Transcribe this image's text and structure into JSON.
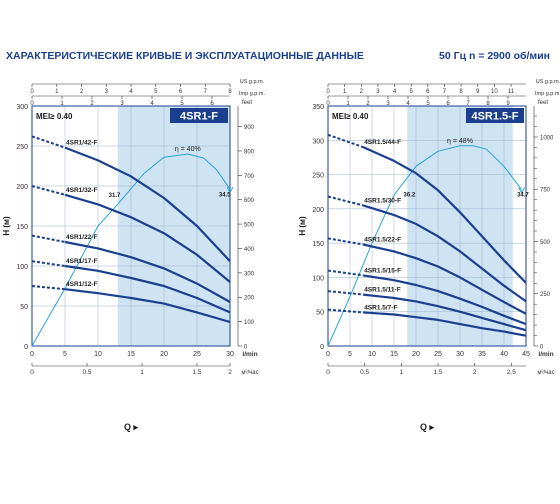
{
  "page": {
    "title": "ХАРАКТЕРИСТИЧЕСКИЕ КРИВЫЕ И ЭКСПЛУАТАЦИОННЫЕ ДАННЫЕ",
    "frequency": "50 Гц   n = 2900 об/мин"
  },
  "colors": {
    "curve": "#1b3f8f",
    "efficiency": "#2aa3d8",
    "band": "#cfe4f3",
    "label_box": "#1b3f8f"
  },
  "chart_data": [
    {
      "type": "line",
      "title": "4SR1-F",
      "mei": "MEI≥ 0.40",
      "ylabel": "H (м)",
      "right_unit": "feet",
      "xlabel": "Q",
      "q_max": 30,
      "ylim": [
        0,
        300
      ],
      "yticks": [
        0,
        50,
        100,
        150,
        200,
        250,
        300
      ],
      "feet_ticks": [
        0,
        100,
        200,
        300,
        400,
        500,
        600,
        700,
        800,
        900
      ],
      "top_axes": [
        {
          "unit": "US g.p.m.",
          "max": 8,
          "ticks": [
            0,
            1,
            2,
            3,
            4,
            5,
            6,
            7,
            8
          ]
        },
        {
          "unit": "Imp g.p.m.",
          "max": 6.6,
          "ticks": [
            0,
            1,
            2,
            3,
            4,
            5,
            6
          ]
        }
      ],
      "bottom_axes": [
        {
          "unit": "l/min",
          "max": 30,
          "ticks": [
            0,
            5,
            10,
            15,
            20,
            25,
            30
          ]
        },
        {
          "unit": "м³/час",
          "max": 1.8,
          "ticks": [
            "0",
            "0.5",
            "1",
            "1.5",
            "2"
          ],
          "tick_values": [
            0,
            0.5,
            1,
            1.5,
            2
          ]
        }
      ],
      "band": [
        13,
        30
      ],
      "series": [
        {
          "name": "4SR1/42-F",
          "shutoff": 262,
          "q_start": 5,
          "points": [
            [
              5,
              248
            ],
            [
              10,
              232
            ],
            [
              15,
              212
            ],
            [
              20,
              185
            ],
            [
              25,
              150
            ],
            [
              30,
              106
            ]
          ]
        },
        {
          "name": "4SR1/32-F",
          "shutoff": 200,
          "q_start": 5,
          "points": [
            [
              5,
              189
            ],
            [
              10,
              177
            ],
            [
              15,
              161
            ],
            [
              20,
              141
            ],
            [
              25,
              114
            ],
            [
              30,
              80
            ]
          ]
        },
        {
          "name": "4SR1/22-F",
          "shutoff": 138,
          "q_start": 5,
          "points": [
            [
              5,
              130
            ],
            [
              10,
              122
            ],
            [
              15,
              111
            ],
            [
              20,
              97
            ],
            [
              25,
              78
            ],
            [
              30,
              55
            ]
          ]
        },
        {
          "name": "4SR1/17-F",
          "shutoff": 106,
          "q_start": 5,
          "points": [
            [
              5,
              100
            ],
            [
              10,
              94
            ],
            [
              15,
              85
            ],
            [
              20,
              75
            ],
            [
              25,
              60
            ],
            [
              30,
              42
            ]
          ]
        },
        {
          "name": "4SR1/12-F",
          "shutoff": 75,
          "q_start": 5,
          "points": [
            [
              5,
              71
            ],
            [
              10,
              66
            ],
            [
              15,
              60
            ],
            [
              20,
              53
            ],
            [
              25,
              42
            ],
            [
              30,
              30
            ]
          ]
        }
      ],
      "efficiency": {
        "peak_label": "η = 40%",
        "points": [
          [
            0,
            0
          ],
          [
            5,
            72
          ],
          [
            10,
            150
          ],
          [
            13.5,
            182
          ],
          [
            17,
            216
          ],
          [
            20,
            236
          ],
          [
            23.6,
            240
          ],
          [
            26,
            235
          ],
          [
            28,
            220
          ],
          [
            30,
            196
          ]
        ],
        "annotations": [
          {
            "text": "31.7",
            "q": 12.5,
            "h": 186
          },
          {
            "text": "34.5",
            "q": 29.2,
            "h": 187
          }
        ]
      }
    },
    {
      "type": "line",
      "title": "4SR1.5-F",
      "mei": "MEI≥ 0.40",
      "ylabel": "H (м)",
      "right_unit": "feet",
      "xlabel": "Q",
      "q_max": 45,
      "ylim": [
        0,
        350
      ],
      "yticks": [
        0,
        50,
        100,
        150,
        200,
        250,
        300,
        350
      ],
      "feet_ticks": [
        0,
        250,
        500,
        750,
        1000
      ],
      "feet_minor": [
        50,
        100,
        150,
        200,
        300,
        350,
        400,
        450,
        550,
        600,
        650,
        700,
        800,
        850,
        900,
        950,
        1050,
        1100
      ],
      "top_axes": [
        {
          "unit": "US g.p.m.",
          "max": 11.9,
          "ticks": [
            0,
            1,
            2,
            3,
            4,
            5,
            6,
            7,
            8,
            9,
            10,
            11
          ]
        },
        {
          "unit": "Imp g.p.m.",
          "max": 9.9,
          "ticks": [
            0,
            1,
            2,
            3,
            4,
            5,
            6,
            7,
            8,
            9
          ]
        }
      ],
      "bottom_axes": [
        {
          "unit": "l/min",
          "max": 45,
          "ticks": [
            0,
            5,
            10,
            15,
            20,
            25,
            30,
            35,
            40,
            45
          ]
        },
        {
          "unit": "м³/час",
          "max": 2.7,
          "ticks": [
            "0",
            "0.5",
            "1",
            "1.5",
            "2",
            "2.5"
          ],
          "tick_values": [
            0,
            0.5,
            1,
            1.5,
            2,
            2.5
          ]
        }
      ],
      "band": [
        18,
        42
      ],
      "series": [
        {
          "name": "4SR1.5/44-F",
          "shutoff": 308,
          "q_start": 8,
          "points": [
            [
              8,
              290
            ],
            [
              15,
              270
            ],
            [
              20,
              252
            ],
            [
              25,
              227
            ],
            [
              30,
              195
            ],
            [
              35,
              160
            ],
            [
              40,
              125
            ],
            [
              45,
              92
            ]
          ]
        },
        {
          "name": "4SR1.5/30-F",
          "shutoff": 218,
          "q_start": 8,
          "points": [
            [
              8,
              205
            ],
            [
              15,
              191
            ],
            [
              20,
              178
            ],
            [
              25,
              160
            ],
            [
              30,
              138
            ],
            [
              35,
              113
            ],
            [
              40,
              88
            ],
            [
              45,
              65
            ]
          ]
        },
        {
          "name": "4SR1.5/22-F",
          "shutoff": 157,
          "q_start": 8,
          "points": [
            [
              8,
              148
            ],
            [
              15,
              138
            ],
            [
              20,
              128
            ],
            [
              25,
              116
            ],
            [
              30,
              100
            ],
            [
              35,
              82
            ],
            [
              40,
              64
            ],
            [
              45,
              47
            ]
          ]
        },
        {
          "name": "4SR1.5/15-F",
          "shutoff": 110,
          "q_start": 8,
          "points": [
            [
              8,
              103
            ],
            [
              15,
              96
            ],
            [
              20,
              89
            ],
            [
              25,
              80
            ],
            [
              30,
              69
            ],
            [
              35,
              57
            ],
            [
              40,
              44
            ],
            [
              45,
              32
            ]
          ]
        },
        {
          "name": "4SR1.5/11-F",
          "shutoff": 80,
          "q_start": 8,
          "points": [
            [
              8,
              75
            ],
            [
              15,
              70
            ],
            [
              20,
              65
            ],
            [
              25,
              58
            ],
            [
              30,
              50
            ],
            [
              35,
              41
            ],
            [
              40,
              32
            ],
            [
              45,
              23
            ]
          ]
        },
        {
          "name": "4SR1.5/7-F",
          "shutoff": 53,
          "q_start": 8,
          "points": [
            [
              8,
              49
            ],
            [
              15,
              46
            ],
            [
              20,
              42
            ],
            [
              25,
              38
            ],
            [
              30,
              32
            ],
            [
              35,
              26
            ],
            [
              40,
              21
            ],
            [
              45,
              15
            ]
          ]
        }
      ],
      "efficiency": {
        "peak_label": "η = 48%",
        "points": [
          [
            0,
            0
          ],
          [
            5,
            72
          ],
          [
            10,
            150
          ],
          [
            15,
            220
          ],
          [
            20,
            262
          ],
          [
            25,
            284
          ],
          [
            30,
            292
          ],
          [
            33,
            292
          ],
          [
            36,
            287
          ],
          [
            40,
            262
          ],
          [
            44,
            228
          ]
        ],
        "annotations": [
          {
            "text": "36.2",
            "q": 18.5,
            "h": 218
          },
          {
            "text": "34.7",
            "q": 44.3,
            "h": 218
          }
        ]
      }
    }
  ]
}
